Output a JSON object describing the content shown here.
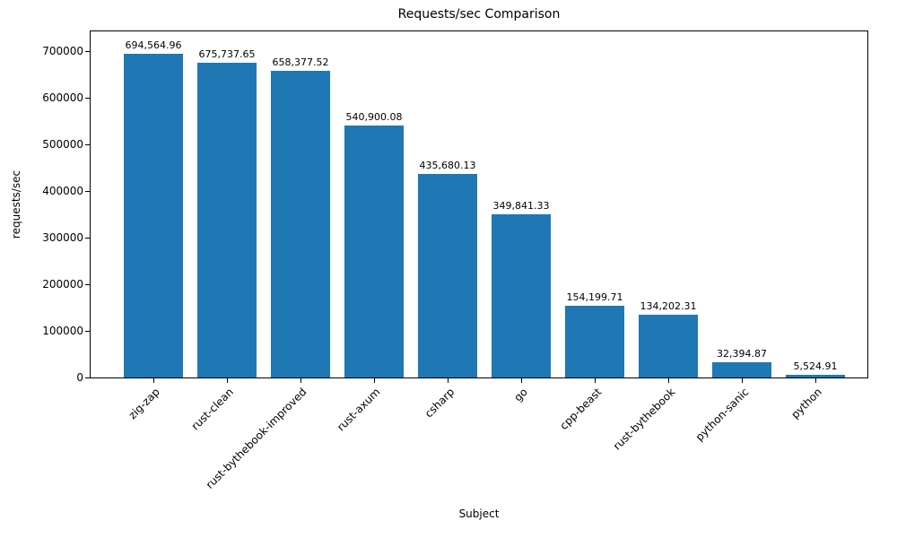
{
  "chart_data": {
    "type": "bar",
    "title": "Requests/sec Comparison",
    "xlabel": "Subject",
    "ylabel": "requests/sec",
    "categories": [
      "zig-zap",
      "rust-clean",
      "rust-bythebook-improved",
      "rust-axum",
      "csharp",
      "go",
      "cpp-beast",
      "rust-bythebook",
      "python-sanic",
      "python"
    ],
    "values": [
      694564.96,
      675737.65,
      658377.52,
      540900.08,
      435680.13,
      349841.33,
      154199.71,
      134202.31,
      32394.87,
      5524.91
    ],
    "value_labels": [
      "694,564.96",
      "675,737.65",
      "658,377.52",
      "540,900.08",
      "435,680.13",
      "349,841.33",
      "154,199.71",
      "134,202.31",
      "32,394.87",
      "5,524.91"
    ],
    "yticks": [
      0,
      100000,
      200000,
      300000,
      400000,
      500000,
      600000,
      700000
    ],
    "ylim": [
      0,
      700000
    ],
    "grid": false,
    "legend_position": "none",
    "bar_color": "#1f77b4",
    "axis_color": "#000000",
    "background_color": "#ffffff"
  }
}
